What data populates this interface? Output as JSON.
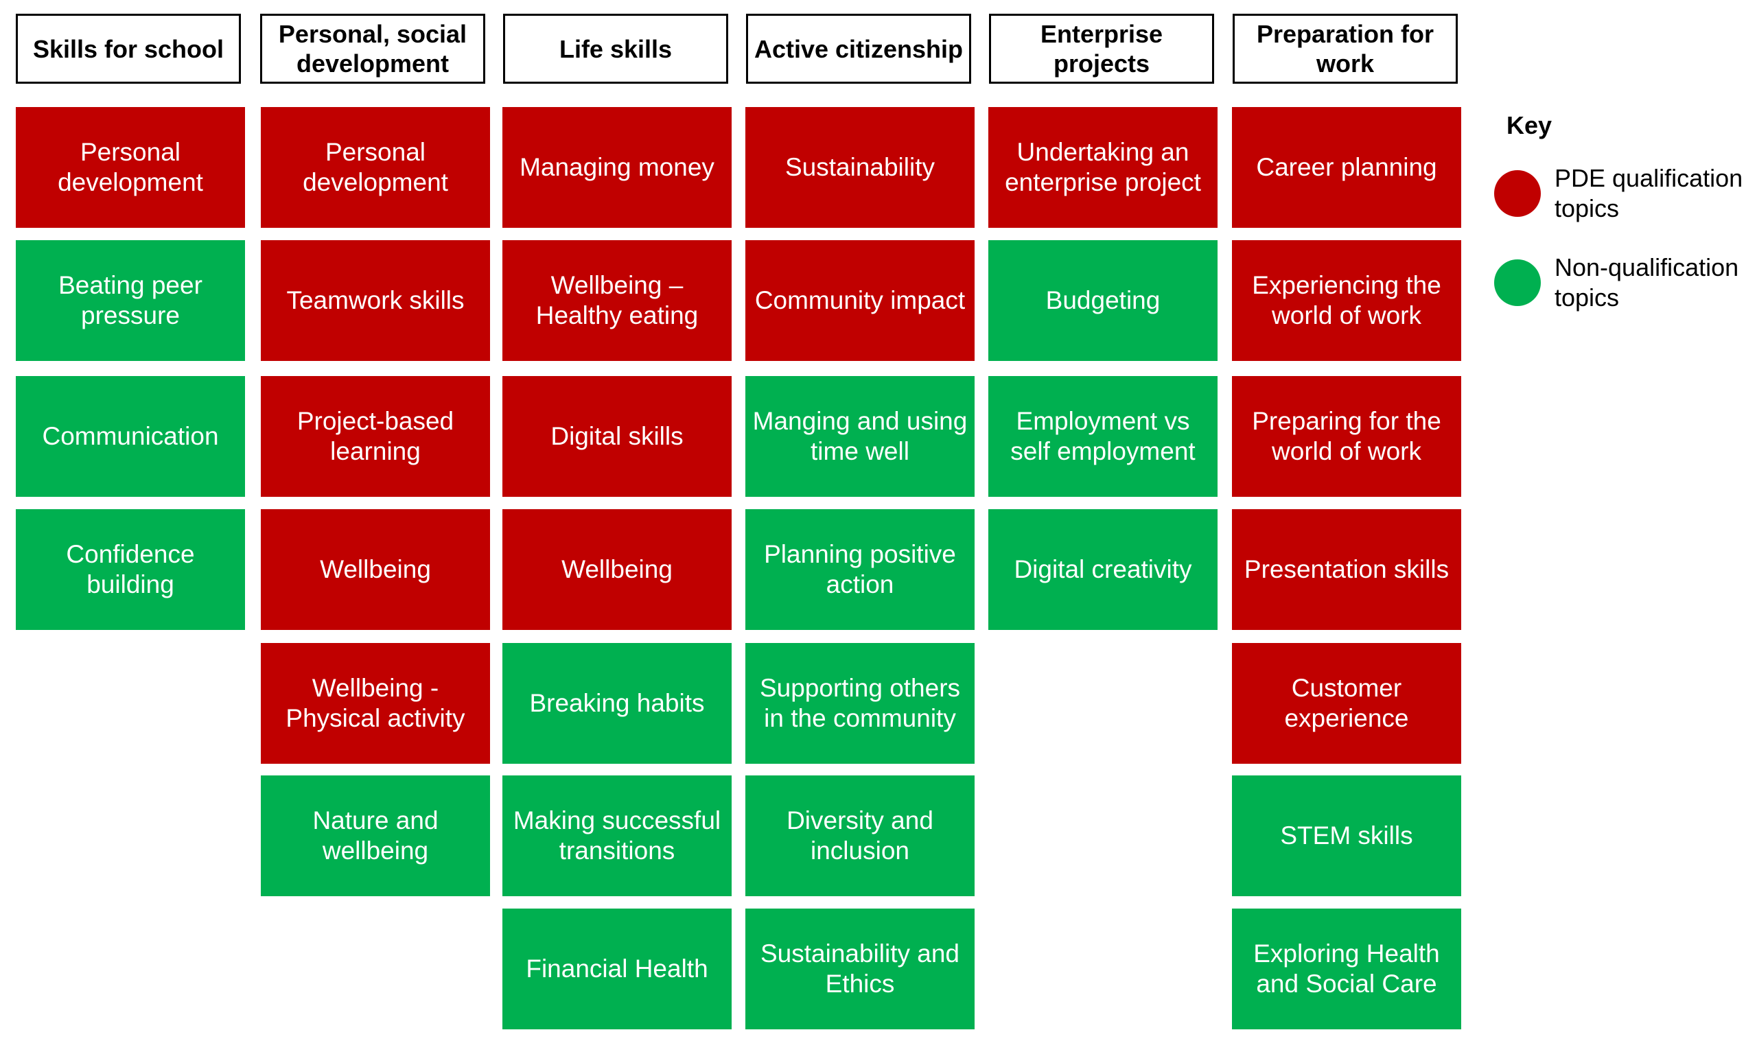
{
  "columns": [
    {
      "header": "Skills for school",
      "tiles": [
        {
          "label": "Personal development",
          "status": "qualification"
        },
        {
          "label": "Beating peer pressure",
          "status": "non-qualification"
        },
        {
          "label": "Communication",
          "status": "non-qualification"
        },
        {
          "label": "Confidence building",
          "status": "non-qualification"
        }
      ]
    },
    {
      "header": "Personal, social development",
      "tiles": [
        {
          "label": "Personal development",
          "status": "qualification"
        },
        {
          "label": "Teamwork skills",
          "status": "qualification"
        },
        {
          "label": "Project-based learning",
          "status": "qualification"
        },
        {
          "label": "Wellbeing",
          "status": "qualification"
        },
        {
          "label": "Wellbeing - Physical activity",
          "status": "qualification"
        },
        {
          "label": "Nature and wellbeing",
          "status": "non-qualification"
        }
      ]
    },
    {
      "header": "Life skills",
      "tiles": [
        {
          "label": "Managing money",
          "status": "qualification"
        },
        {
          "label": "Wellbeing – Healthy eating",
          "status": "qualification"
        },
        {
          "label": "Digital skills",
          "status": "qualification"
        },
        {
          "label": "Wellbeing",
          "status": "qualification"
        },
        {
          "label": "Breaking habits",
          "status": "non-qualification"
        },
        {
          "label": "Making successful transitions",
          "status": "non-qualification"
        },
        {
          "label": "Financial Health",
          "status": "non-qualification"
        }
      ]
    },
    {
      "header": "Active citizenship",
      "tiles": [
        {
          "label": "Sustainability",
          "status": "qualification"
        },
        {
          "label": "Community impact",
          "status": "qualification"
        },
        {
          "label": "Manging and using time well",
          "status": "non-qualification"
        },
        {
          "label": "Planning positive action",
          "status": "non-qualification"
        },
        {
          "label": "Supporting others in the community",
          "status": "non-qualification"
        },
        {
          "label": "Diversity and inclusion",
          "status": "non-qualification"
        },
        {
          "label": "Sustainability and Ethics",
          "status": "non-qualification"
        }
      ]
    },
    {
      "header": "Enterprise projects",
      "tiles": [
        {
          "label": "Undertaking an enterprise project",
          "status": "qualification"
        },
        {
          "label": "Budgeting",
          "status": "non-qualification"
        },
        {
          "label": "Employment vs self employment",
          "status": "non-qualification"
        },
        {
          "label": "Digital creativity",
          "status": "non-qualification"
        }
      ]
    },
    {
      "header": "Preparation for work",
      "tiles": [
        {
          "label": "Career planning",
          "status": "qualification"
        },
        {
          "label": "Experiencing the world of work",
          "status": "qualification"
        },
        {
          "label": "Preparing for the world of work",
          "status": "qualification"
        },
        {
          "label": "Presentation skills",
          "status": "qualification"
        },
        {
          "label": "Customer experience",
          "status": "qualification"
        },
        {
          "label": "STEM skills",
          "status": "non-qualification"
        },
        {
          "label": "Exploring Health and Social Care",
          "status": "non-qualification"
        }
      ]
    }
  ],
  "key": {
    "title": "Key",
    "items": [
      {
        "label": "PDE qualification topics",
        "color": "#c00000"
      },
      {
        "label": "Non-qualification topics",
        "color": "#00b050"
      }
    ]
  },
  "colors": {
    "qualification": "#c00000",
    "non_qualification": "#00b050"
  }
}
